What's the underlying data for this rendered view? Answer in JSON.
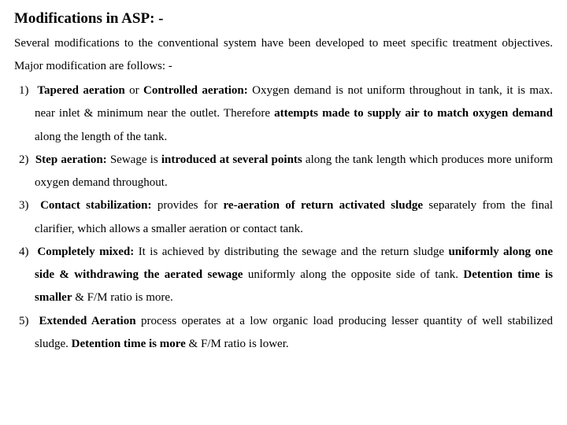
{
  "title": "Modifications in ASP: -",
  "intro": "Several modifications to the conventional system have been developed to meet specific treatment objectives. Major modification are follows: -",
  "items": [
    {
      "num": "1)",
      "lead_b": "Tapered aeration",
      "mid1": " or ",
      "b2": "Controlled aeration:",
      "mid2": " Oxygen demand is not uniform throughout in tank, it is max. near inlet & minimum near the outlet. Therefore ",
      "b3": "attempts made to supply air to match oxygen demand",
      "tail": " along the length of the tank."
    },
    {
      "num": "2)",
      "lead_b": "Step aeration:",
      "mid1": " Sewage is ",
      "b2": "introduced at several points",
      "mid2": " along the tank length which produces more uniform oxygen demand throughout.",
      "b3": "",
      "tail": ""
    },
    {
      "num": "3)",
      "lead_b": "Contact stabilization:",
      "mid1": " provides for ",
      "b2": "re-aeration of return activated sludge",
      "mid2": " separately from the final clarifier, which allows a smaller aeration or contact tank.",
      "b3": "",
      "tail": ""
    },
    {
      "num": "4)",
      "lead_b": "Completely mixed:",
      "mid1": " It is achieved by distributing the sewage and the return sludge ",
      "b2": "uniformly along one side  & withdrawing the aerated sewage",
      "mid2": " uniformly along the opposite side of tank. ",
      "b3": "Detention time is smaller",
      "tail": " & F/M ratio is more."
    },
    {
      "num": "5)",
      "lead_b": "Extended Aeration",
      "mid1": " process operates at a low organic load producing lesser quantity of well stabilized sludge. ",
      "b2": "Detention time is more",
      "mid2": " & F/M ratio is lower.",
      "b3": "",
      "tail": ""
    }
  ]
}
